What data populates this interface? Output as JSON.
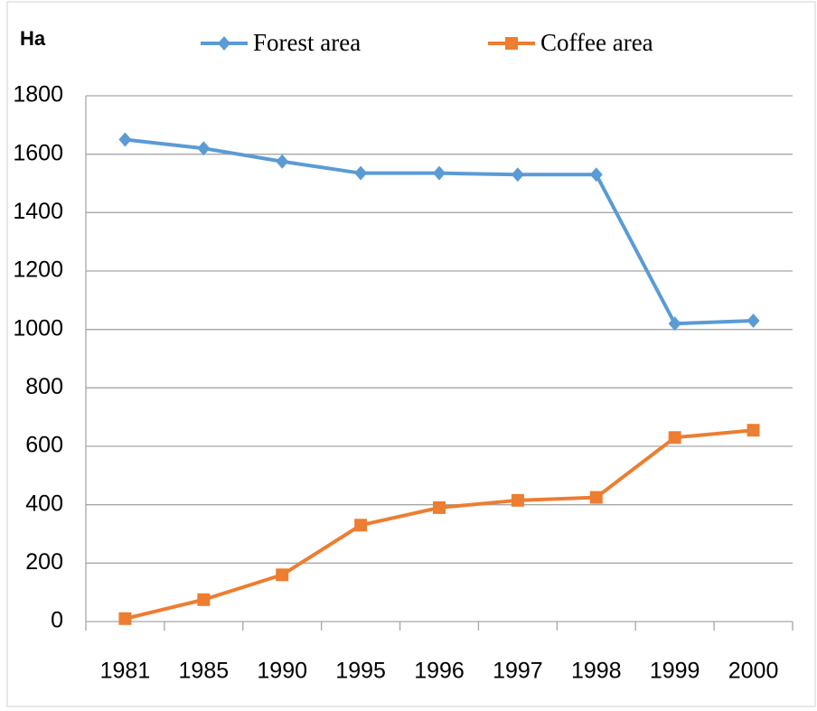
{
  "chart_data": {
    "type": "line",
    "y_label": "Ha",
    "categories": [
      "1981",
      "1985",
      "1990",
      "1995",
      "1996",
      "1997",
      "1998",
      "1999",
      "2000"
    ],
    "series": [
      {
        "name": "Forest area",
        "color": "#5b9bd5",
        "marker": "diamond",
        "values": [
          1650,
          1620,
          1575,
          1535,
          1535,
          1530,
          1530,
          1020,
          1030
        ]
      },
      {
        "name": "Coffee area",
        "color": "#ed7d31",
        "marker": "square",
        "values": [
          10,
          75,
          160,
          330,
          390,
          415,
          425,
          630,
          655
        ]
      }
    ],
    "ylim": [
      0,
      1800
    ],
    "yticks": [
      0,
      200,
      400,
      600,
      800,
      1000,
      1200,
      1400,
      1600,
      1800
    ],
    "grid": true,
    "legend": "top"
  }
}
